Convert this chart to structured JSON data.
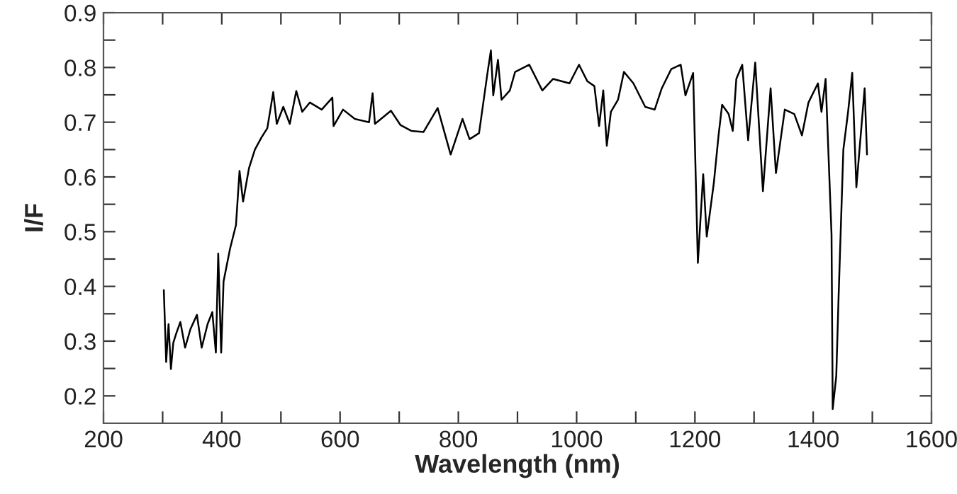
{
  "chart_data": {
    "type": "line",
    "xlabel": "Wavelength (nm)",
    "ylabel": "I/F",
    "xlim": [
      200,
      1600
    ],
    "ylim": [
      0.15,
      0.9
    ],
    "xticks": [
      200,
      {
        "value": 300,
        "label": null
      },
      400,
      {
        "value": 500,
        "label": null
      },
      600,
      {
        "value": 700,
        "label": null
      },
      800,
      {
        "value": 900,
        "label": null
      },
      1000,
      {
        "value": 1100,
        "label": null
      },
      1200,
      {
        "value": 1300,
        "label": null
      },
      1400,
      {
        "value": 1500,
        "label": null
      },
      1600
    ],
    "yticks": [
      0.2,
      {
        "value": 0.25,
        "label": null
      },
      0.3,
      {
        "value": 0.35,
        "label": null
      },
      0.4,
      {
        "value": 0.45,
        "label": null
      },
      0.5,
      {
        "value": 0.55,
        "label": null
      },
      0.6,
      {
        "value": 0.65,
        "label": null
      },
      0.7,
      {
        "value": 0.75,
        "label": null
      },
      0.8,
      {
        "value": 0.85,
        "label": null
      },
      0.9
    ],
    "grid": false,
    "marker": "none",
    "line_style": "solid",
    "series": [
      {
        "color": "#000000",
        "x": [
          302,
          306,
          310,
          314,
          318,
          323,
          330,
          338,
          347,
          358,
          366,
          376,
          384,
          390,
          394,
          399,
          403,
          414,
          424,
          430,
          436,
          446,
          456,
          467,
          477,
          487,
          493,
          504,
          515,
          526,
          536,
          549,
          569,
          587,
          589,
          605,
          625,
          649,
          655,
          659,
          686,
          702,
          721,
          741,
          765,
          787,
          807,
          819,
          835,
          849,
          855,
          859,
          867,
          873,
          887,
          896,
          920,
          942,
          960,
          988,
          1004,
          1018,
          1030,
          1038,
          1045,
          1051,
          1058,
          1070,
          1080,
          1096,
          1116,
          1132,
          1144,
          1160,
          1176,
          1184,
          1197,
          1205,
          1214,
          1220,
          1232,
          1240,
          1246,
          1257,
          1264,
          1270,
          1280,
          1290,
          1302,
          1315,
          1328,
          1337,
          1352,
          1368,
          1381,
          1392,
          1408,
          1414,
          1421,
          1431,
          1433,
          1439,
          1443,
          1451,
          1459,
          1466,
          1473,
          1479,
          1487,
          1491
        ],
        "values": [
          0.393,
          0.262,
          0.331,
          0.249,
          0.297,
          0.314,
          0.335,
          0.288,
          0.322,
          0.348,
          0.288,
          0.331,
          0.353,
          0.279,
          0.46,
          0.279,
          0.409,
          0.469,
          0.512,
          0.611,
          0.555,
          0.616,
          0.65,
          0.672,
          0.689,
          0.755,
          0.697,
          0.728,
          0.697,
          0.757,
          0.719,
          0.736,
          0.723,
          0.745,
          0.693,
          0.723,
          0.706,
          0.7,
          0.753,
          0.697,
          0.721,
          0.695,
          0.684,
          0.682,
          0.726,
          0.641,
          0.706,
          0.669,
          0.68,
          0.788,
          0.831,
          0.749,
          0.814,
          0.741,
          0.758,
          0.792,
          0.805,
          0.758,
          0.779,
          0.771,
          0.805,
          0.775,
          0.766,
          0.693,
          0.758,
          0.657,
          0.719,
          0.741,
          0.792,
          0.771,
          0.728,
          0.723,
          0.762,
          0.797,
          0.805,
          0.749,
          0.79,
          0.443,
          0.605,
          0.491,
          0.589,
          0.676,
          0.732,
          0.715,
          0.684,
          0.779,
          0.805,
          0.667,
          0.809,
          0.574,
          0.762,
          0.607,
          0.723,
          0.715,
          0.676,
          0.736,
          0.771,
          0.719,
          0.779,
          0.495,
          0.176,
          0.236,
          0.383,
          0.65,
          0.719,
          0.79,
          0.581,
          0.659,
          0.762,
          0.641
        ]
      }
    ]
  }
}
